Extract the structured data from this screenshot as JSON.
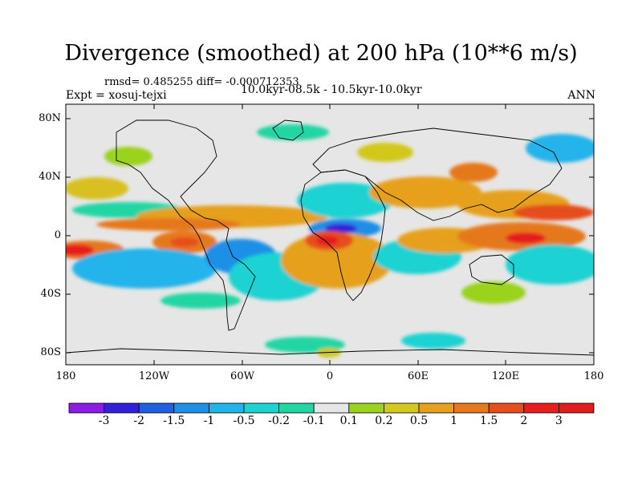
{
  "title": "Divergence (smoothed) at 200 hPa (10**6 m/s)",
  "stats": "rmsd= 0.485255 diff= -0.000712353",
  "expt": "Expt = xosuj-tejxi",
  "period": "10.0kyr-08.5k - 10.5kyr-10.0kyr",
  "season": "ANN",
  "lat_ticks": [
    "80N",
    "40N",
    "0",
    "40S",
    "80S"
  ],
  "lon_ticks": [
    "180",
    "120W",
    "60W",
    "0",
    "60E",
    "120E",
    "180"
  ],
  "colorbar": {
    "labels": [
      "-3",
      "-2",
      "-1.5",
      "-1",
      "-0.5",
      "-0.2",
      "-0.1",
      "0.1",
      "0.2",
      "0.5",
      "1",
      "1.5",
      "2",
      "3"
    ],
    "colors": [
      "#8a1ce6",
      "#3420d8",
      "#1f5fe0",
      "#1e90e6",
      "#20b4ea",
      "#1ed2d2",
      "#22d6a4",
      "#e6e6e6",
      "#9ad21e",
      "#d2c81e",
      "#e6a01e",
      "#e6781e",
      "#e64e1e",
      "#e61e1e",
      "#e01c1c"
    ]
  },
  "colors": {
    "neutral": "#e6e6e6",
    "coast": "#000000"
  }
}
